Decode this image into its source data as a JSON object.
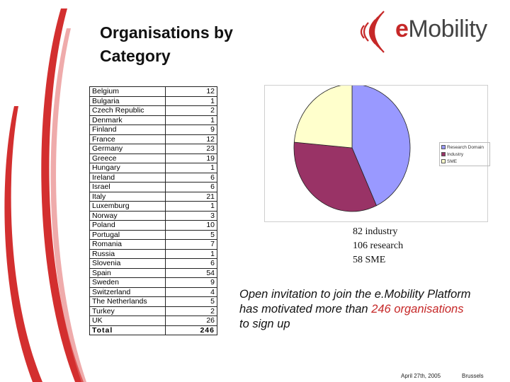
{
  "slide": {
    "title_line1": "Organisations by",
    "title_line2": "Category",
    "logo_prefix": "e",
    "logo_rest": "Mobility"
  },
  "table": {
    "rows": [
      {
        "country": "Belgium",
        "count": "12"
      },
      {
        "country": "Bulgaria",
        "count": "1"
      },
      {
        "country": "Czech Republic",
        "count": "2"
      },
      {
        "country": "Denmark",
        "count": "1"
      },
      {
        "country": "Finland",
        "count": "9"
      },
      {
        "country": "France",
        "count": "12"
      },
      {
        "country": "Germany",
        "count": "23"
      },
      {
        "country": "Greece",
        "count": "19"
      },
      {
        "country": "Hungary",
        "count": "1"
      },
      {
        "country": "Ireland",
        "count": "6"
      },
      {
        "country": "Israel",
        "count": "6"
      },
      {
        "country": "Italy",
        "count": "21"
      },
      {
        "country": "Luxemburg",
        "count": "1"
      },
      {
        "country": "Norway",
        "count": "3"
      },
      {
        "country": "Poland",
        "count": "10"
      },
      {
        "country": "Portugal",
        "count": "5"
      },
      {
        "country": "Romania",
        "count": "7"
      },
      {
        "country": "Russia",
        "count": "1"
      },
      {
        "country": "Slovenia",
        "count": "6"
      },
      {
        "country": "Spain",
        "count": "54"
      },
      {
        "country": "Sweden",
        "count": "9"
      },
      {
        "country": "Switzerland",
        "count": "4"
      },
      {
        "country": "The Netherlands",
        "count": "5"
      },
      {
        "country": "Turkey",
        "count": "2"
      },
      {
        "country": "UK",
        "count": "26"
      }
    ],
    "total_label": "Total",
    "total_value": "246"
  },
  "chart_data": {
    "type": "pie",
    "categories": [
      "Research Domain",
      "Industry",
      "SME"
    ],
    "values": [
      106,
      82,
      58
    ],
    "colors": [
      "#9999ff",
      "#993366",
      "#ffffcc"
    ]
  },
  "notes": {
    "line1": "82 industry",
    "line2": "106 research",
    "line3": "58 SME"
  },
  "invite": {
    "text_a": "Open invitation to join the e.Mobility Platform has motivated more than ",
    "number": "246",
    "word": "organisations",
    "text_b": " to sign up"
  },
  "footer": {
    "date": "April 27th, 2005",
    "place": "Brussels"
  }
}
